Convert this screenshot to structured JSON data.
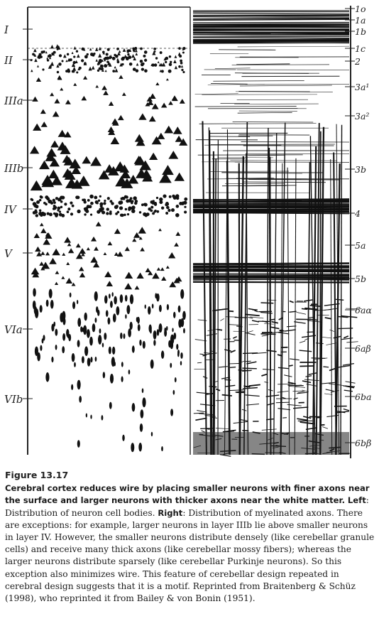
{
  "figure": {
    "left_labels": [
      "I",
      "II",
      "IIIa",
      "IIIb",
      "IV",
      "V",
      "VIa",
      "VIb"
    ],
    "right_labels": [
      "1o",
      "1a",
      "1b",
      "1c",
      "2",
      "3a¹",
      "3a²",
      "3b",
      "4",
      "5a",
      "5b",
      "6aα",
      "6aβ",
      "6ba",
      "6bβ"
    ]
  },
  "caption": {
    "figure_number": "Figure 13.17",
    "bold_sentence": "Cerebral cortex reduces wire by placing smaller neurons with finer axons near the surface and larger neurons with thicker axons near the white matter.",
    "left_keyword": "Left",
    "left_text": ": Distribution of neuron cell bodies.",
    "right_keyword": "Right",
    "right_text": ": Distribution of myelinated axons. There are exceptions: for example, larger neurons in layer IIIb lie above smaller neurons in layer IV. However, the smaller neurons distribute densely (like cerebellar granule cells) and receive many thick axons (like cerebellar mossy fibers); whereas the larger neurons distribute sparsely (like cerebellar Purkinje neurons). So this exception also minimizes wire. This feature of cerebellar design repeated in cerebral design suggests that it is a motif. Reprinted from Braitenberg & Schüz (1998), who reprinted it from Bailey & von Bonin (1951)."
  }
}
